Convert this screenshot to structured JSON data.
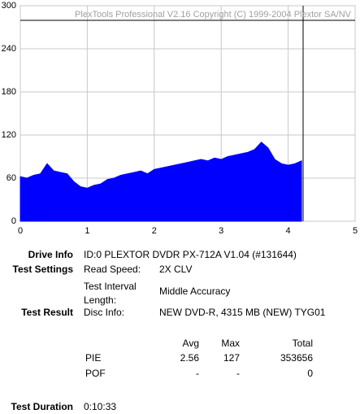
{
  "chart_data": {
    "type": "area",
    "watermark": "PlexTools Professional V2.16 Copyright (C) 1999-2004 Plextor SA/NV",
    "x": [
      0,
      0.1,
      0.2,
      0.3,
      0.4,
      0.5,
      0.6,
      0.7,
      0.8,
      0.9,
      1.0,
      1.1,
      1.2,
      1.3,
      1.4,
      1.5,
      1.6,
      1.7,
      1.8,
      1.9,
      2.0,
      2.1,
      2.2,
      2.3,
      2.4,
      2.5,
      2.6,
      2.7,
      2.8,
      2.9,
      3.0,
      3.1,
      3.2,
      3.3,
      3.4,
      3.5,
      3.6,
      3.7,
      3.8,
      3.9,
      4.0,
      4.1,
      4.2
    ],
    "values": [
      62,
      60,
      64,
      66,
      80,
      70,
      68,
      66,
      55,
      48,
      46,
      50,
      52,
      58,
      60,
      64,
      66,
      68,
      70,
      66,
      72,
      74,
      76,
      78,
      80,
      82,
      84,
      86,
      84,
      88,
      86,
      90,
      92,
      94,
      96,
      100,
      110,
      102,
      86,
      80,
      78,
      80,
      84
    ],
    "color": "#0000ff",
    "xlim": [
      0,
      5
    ],
    "ylim": [
      0,
      300
    ],
    "xticks": [
      0,
      1,
      2,
      3,
      4,
      5
    ],
    "yticks": [
      0,
      60,
      120,
      180,
      240,
      300
    ],
    "grid": true
  },
  "info": {
    "drive_info": {
      "label": "Drive Info",
      "value": "ID:0 PLEXTOR DVDR PX-712A V1.04 (#131644)"
    },
    "test_settings": {
      "label": "Test Settings",
      "read_speed_label": "Read Speed:",
      "read_speed": "2X CLV",
      "interval_label": "Test Interval Length:",
      "interval": "Middle Accuracy"
    },
    "test_result": {
      "label": "Test Result",
      "disc_info_label": "Disc Info:",
      "disc_info": "NEW DVD-R, 4315 MB (NEW) TYG01"
    },
    "stats": {
      "columns": [
        "Avg",
        "Max",
        "Total"
      ],
      "rows": [
        {
          "name": "PIE",
          "cells": [
            "2.56",
            "127",
            "353656"
          ]
        },
        {
          "name": "POF",
          "cells": [
            "-",
            "-",
            "0"
          ]
        }
      ]
    },
    "test_duration": {
      "label": "Test Duration",
      "value": "0:10:33"
    }
  }
}
